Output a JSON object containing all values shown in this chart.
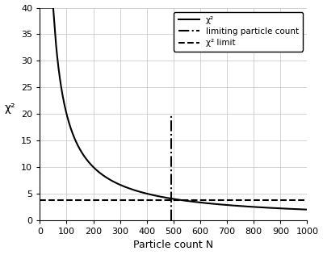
{
  "title": "",
  "xlabel": "Particle count N",
  "ylabel": "χ²",
  "xlim": [
    0,
    1000
  ],
  "ylim": [
    0,
    40
  ],
  "xticks": [
    0,
    100,
    200,
    300,
    400,
    500,
    600,
    700,
    800,
    900,
    1000
  ],
  "yticks": [
    0,
    5,
    10,
    15,
    20,
    25,
    30,
    35,
    40
  ],
  "chi2_scale": 2000,
  "chi2_start": 2,
  "chi2_end": 1000,
  "chi2_num_points": 2000,
  "limiting_count": 490,
  "chi2_limit": 3.841,
  "vertical_line_ymax": 20,
  "legend_labels": [
    "χ²",
    "limiting particle count",
    "χ² limit"
  ],
  "line_color": "black",
  "background_color": "#ffffff",
  "grid_color": "#c0c0c0",
  "figsize": [
    4.0,
    3.16
  ],
  "dpi": 100
}
